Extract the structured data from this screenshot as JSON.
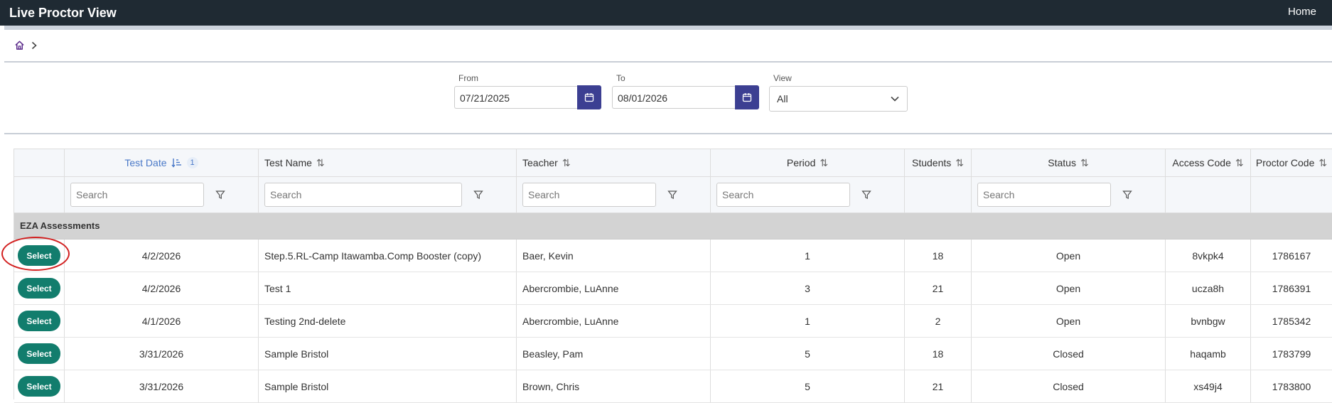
{
  "app": {
    "title": "Live Proctor View",
    "home_link": "Home"
  },
  "filters": {
    "from": {
      "label": "From",
      "value": "07/21/2025"
    },
    "to": {
      "label": "To",
      "value": "08/01/2026"
    },
    "view": {
      "label": "View",
      "selected": "All"
    }
  },
  "table": {
    "columns": [
      {
        "label": "Test Date",
        "sort_badge": "1"
      },
      {
        "label": "Test Name"
      },
      {
        "label": "Teacher"
      },
      {
        "label": "Period"
      },
      {
        "label": "Students"
      },
      {
        "label": "Status"
      },
      {
        "label": "Access Code"
      },
      {
        "label": "Proctor Code"
      }
    ],
    "search_placeholder": "Search",
    "group_label": "EZA Assessments",
    "select_label": "Select",
    "rows": [
      {
        "test_date": "4/2/2026",
        "test_name": "Step.5.RL-Camp Itawamba.Comp Booster (copy)",
        "teacher": "Baer, Kevin",
        "period": "1",
        "students": "18",
        "status": "Open",
        "access_code": "8vkpk4",
        "proctor_code": "1786167"
      },
      {
        "test_date": "4/2/2026",
        "test_name": "Test 1",
        "teacher": "Abercrombie, LuAnne",
        "period": "3",
        "students": "21",
        "status": "Open",
        "access_code": "ucza8h",
        "proctor_code": "1786391"
      },
      {
        "test_date": "4/1/2026",
        "test_name": "Testing 2nd-delete",
        "teacher": "Abercrombie, LuAnne",
        "period": "1",
        "students": "2",
        "status": "Open",
        "access_code": "bvnbgw",
        "proctor_code": "1785342"
      },
      {
        "test_date": "3/31/2026",
        "test_name": "Sample Bristol",
        "teacher": "Beasley, Pam",
        "period": "5",
        "students": "18",
        "status": "Closed",
        "access_code": "haqamb",
        "proctor_code": "1783799"
      },
      {
        "test_date": "3/31/2026",
        "test_name": "Sample Bristol",
        "teacher": "Brown, Chris",
        "period": "5",
        "students": "21",
        "status": "Closed",
        "access_code": "xs49j4",
        "proctor_code": "1783800"
      }
    ]
  },
  "colors": {
    "topbar": "#1f2a33",
    "accent": "#3c3f92",
    "select_button": "#127d6d",
    "active_sort": "#4a79c8",
    "highlight_circle": "#d21f1f"
  }
}
